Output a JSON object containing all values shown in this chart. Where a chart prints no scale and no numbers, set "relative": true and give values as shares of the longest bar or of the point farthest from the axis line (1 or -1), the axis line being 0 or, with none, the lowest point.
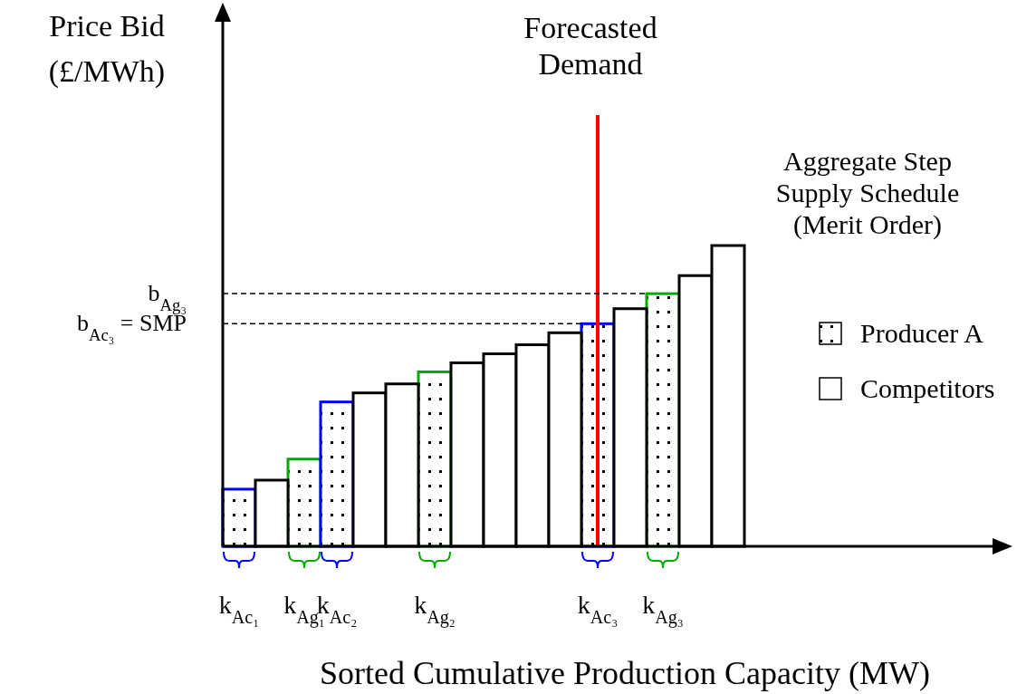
{
  "chart_data": {
    "type": "bar",
    "relative": true,
    "stacked": true,
    "xlabel": "Sorted Cumulative Production Capacity (MW)",
    "categories": [
      "k$_{Ac₁}$",
      null,
      "k$_{Ag₁}$",
      "k$_{Ac₂}$",
      null,
      null,
      "k$_{Ag₂}$",
      null,
      null,
      null,
      null,
      "k$_{Ac₃}$",
      null,
      "k$_{Ag₃}$",
      null,
      null
    ],
    "series": [
      {
        "name": "Producer A",
        "colors": [
          "#0000ff",
          null,
          "#00aa00",
          "#0000ff",
          null,
          null,
          "#00aa00",
          null,
          null,
          null,
          null,
          "#0000ff",
          null,
          "#00aa00",
          null,
          null
        ],
        "values": [
          0.19,
          null,
          0.29,
          0.48,
          null,
          null,
          0.58,
          null,
          null,
          null,
          null,
          0.74,
          null,
          0.84,
          null,
          null
        ]
      },
      {
        "name": "Competitors",
        "color": "#000000",
        "values": [
          null,
          0.22,
          null,
          null,
          0.51,
          0.54,
          null,
          0.61,
          0.64,
          0.67,
          0.71,
          null,
          0.79,
          null,
          0.9,
          1
        ]
      }
    ],
    "ref_lines": [
      {
        "axis": "x",
        "value": "k$_{Ac₃}$",
        "label": "Forecasted\nDemand",
        "color": "#ff0000",
        "line_style": "solid"
      },
      {
        "axis": "y",
        "value": 0.84,
        "label": "b$_{Ag₃}$",
        "color": "#000000",
        "line_style": "dashed"
      },
      {
        "axis": "y",
        "value": 0.74,
        "label": "b$_{Ac₃}$ = SMP",
        "color": "#000000",
        "line_style": "dashed"
      }
    ],
    "annotations": [
      "Price Bid\n(£/MWh)",
      "Aggregate Step\nSupply Schedule\n(Merit Order)"
    ],
    "legend": "right"
  }
}
